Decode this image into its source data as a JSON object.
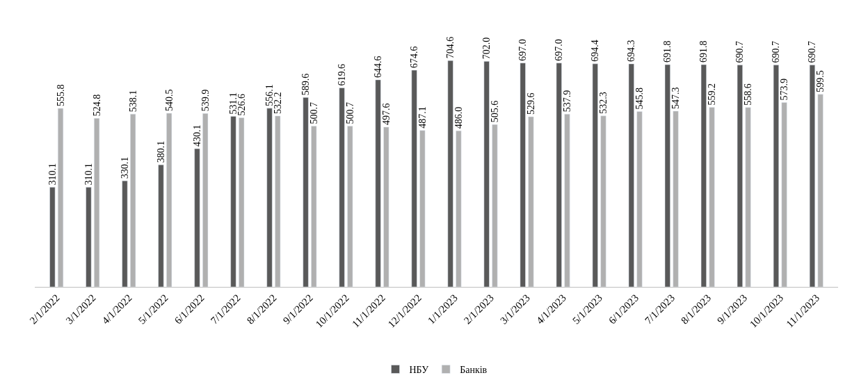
{
  "chart_data": {
    "type": "bar",
    "categories": [
      "2/1/2022",
      "3/1/2022",
      "4/1/2022",
      "5/1/2022",
      "6/1/2022",
      "7/1/2022",
      "8/1/2022",
      "9/1/2022",
      "10/1/2022",
      "11/1/2022",
      "12/1/2022",
      "1/1/2023",
      "2/1/2023",
      "3/1/2023",
      "4/1/2023",
      "5/1/2023",
      "6/1/2023",
      "7/1/2023",
      "8/1/2023",
      "9/1/2023",
      "10/1/2023",
      "11/1/2023"
    ],
    "series": [
      {
        "name": "НБУ",
        "color": "#595959",
        "values": [
          310.1,
          310.1,
          330.1,
          380.1,
          430.1,
          531.1,
          556.1,
          589.6,
          619.6,
          644.6,
          674.6,
          704.6,
          702.0,
          697.0,
          697.0,
          694.4,
          694.3,
          691.8,
          691.8,
          690.7,
          690.7,
          690.7
        ],
        "value_labels": [
          "310.1",
          "310.1",
          "330.1",
          "380.1",
          "430.1",
          "531.1",
          "556.1",
          "589.6",
          "619.6",
          "644.6",
          "674.6",
          "704.6",
          "702.0",
          "697.0",
          "697.0",
          "694.4",
          "694.3",
          "691.8",
          "691.8",
          "690.7",
          "690.7",
          "690.7"
        ]
      },
      {
        "name": "Банків",
        "color": "#b0b0b0",
        "values": [
          555.8,
          524.8,
          538.1,
          540.5,
          539.9,
          526.6,
          532.2,
          500.7,
          500.7,
          497.6,
          487.1,
          486.0,
          505.6,
          529.6,
          537.9,
          532.3,
          545.8,
          547.3,
          559.2,
          558.6,
          573.9,
          599.5
        ],
        "value_labels": [
          "555.8",
          "524.8",
          "538.1",
          "540.5",
          "539.9",
          "526.6",
          "532.2",
          "500.7",
          "500.7",
          "497.6",
          "487.1",
          "486.0",
          "505.6",
          "529.6",
          "537.9",
          "532.3",
          "545.8",
          "547.3",
          "559.2",
          "558.6",
          "573.9",
          "599.5"
        ]
      }
    ],
    "legend": "bottom"
  }
}
